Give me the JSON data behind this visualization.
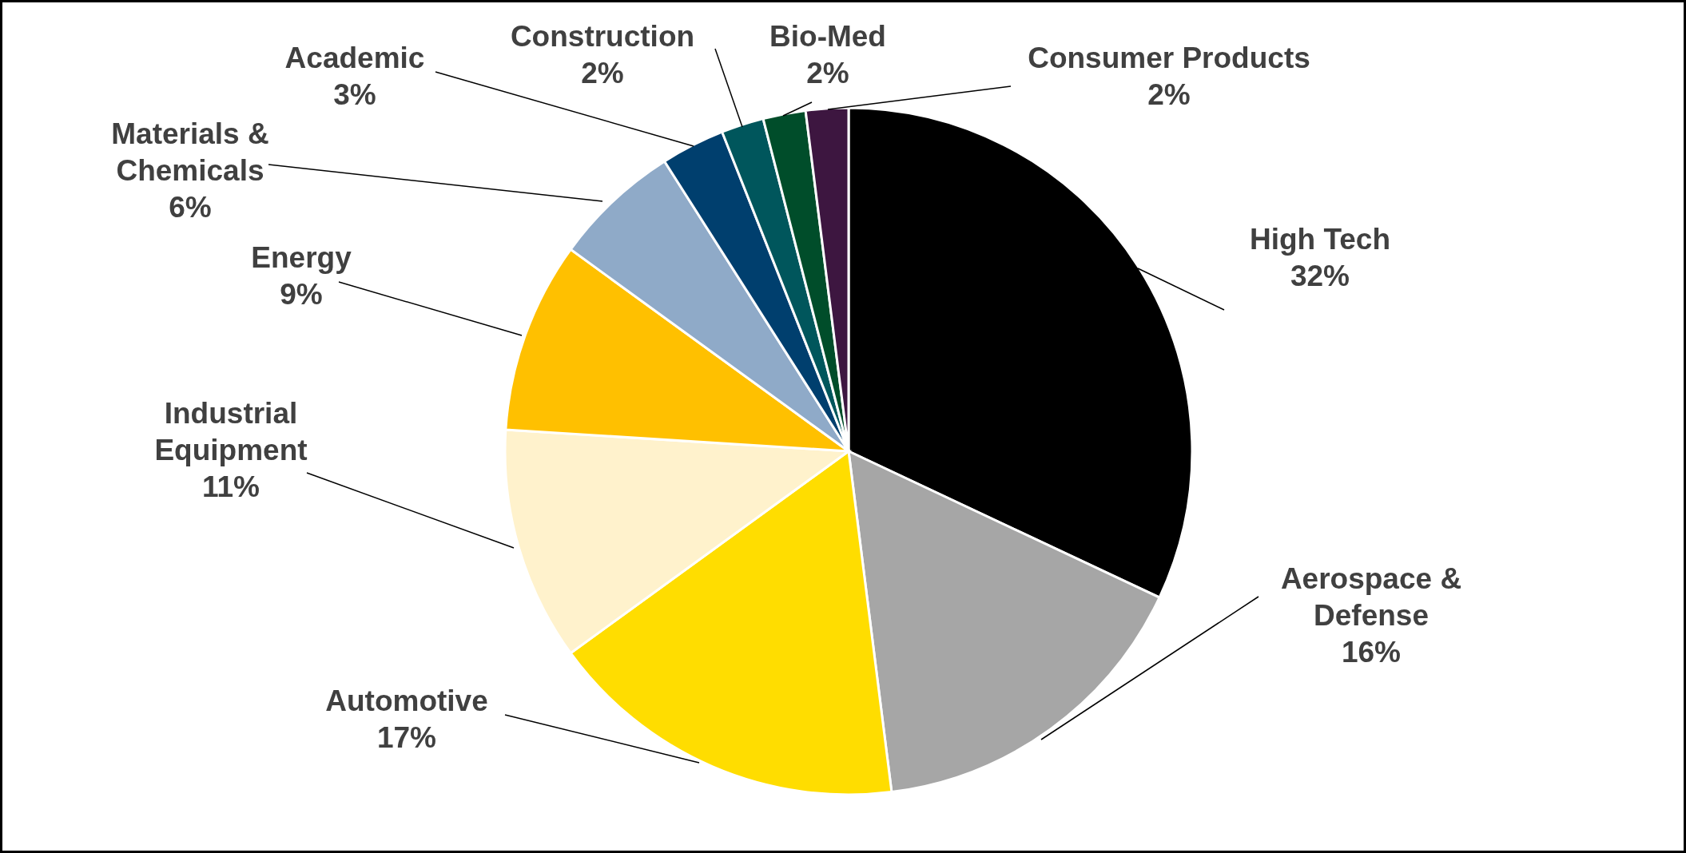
{
  "chart_data": {
    "type": "pie",
    "categories": [
      "High Tech",
      "Aerospace & Defense",
      "Automotive",
      "Industrial Equipment",
      "Energy",
      "Materials & Chemicals",
      "Academic",
      "Construction",
      "Bio-Med",
      "Consumer Products"
    ],
    "values": [
      32,
      16,
      17,
      11,
      9,
      6,
      3,
      2,
      2,
      2
    ],
    "value_labels": [
      "32%",
      "16%",
      "17%",
      "11%",
      "9%",
      "6%",
      "3%",
      "2%",
      "2%",
      "2%"
    ],
    "colors": [
      "#000000",
      "#a6a6a6",
      "#ffdd00",
      "#fff2cc",
      "#ffc000",
      "#8faac8",
      "#003f6e",
      "#00565c",
      "#004d2a",
      "#3d1640"
    ]
  }
}
